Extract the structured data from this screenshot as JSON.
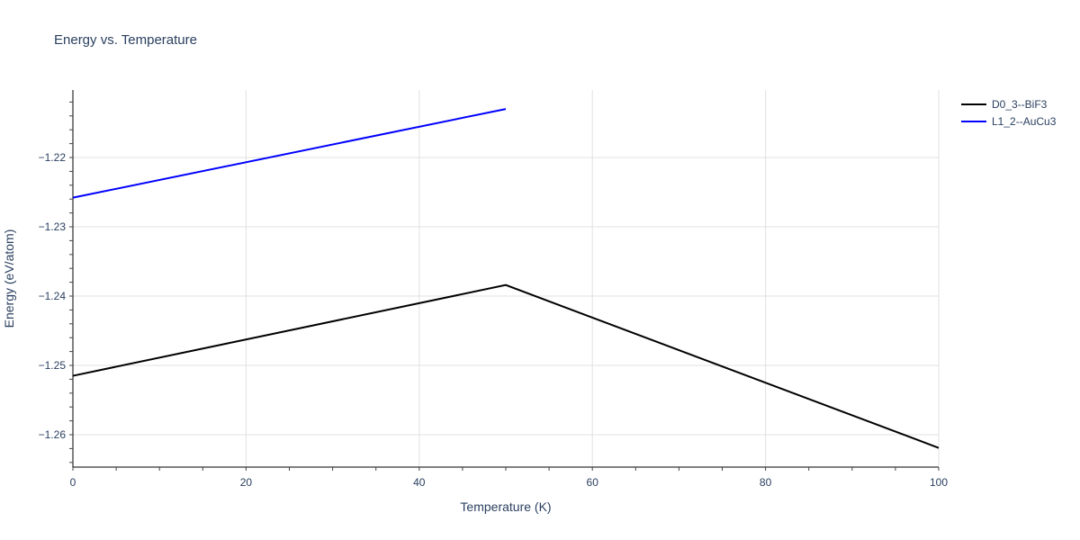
{
  "chart_data": {
    "type": "line",
    "title": "Energy vs. Temperature",
    "xlabel": "Temperature (K)",
    "ylabel": "Energy (eV/atom)",
    "xlim": [
      0,
      100
    ],
    "ylim": [
      -1.265,
      -1.2115
    ],
    "x_ticks": [
      0,
      20,
      40,
      60,
      80,
      100
    ],
    "y_ticks": [
      -1.26,
      -1.25,
      -1.24,
      -1.23,
      -1.22
    ],
    "y_tick_labels": [
      "−1.26",
      "−1.25",
      "−1.24",
      "−1.23",
      "−1.22"
    ],
    "grid": true,
    "legend_position": "top-right outside",
    "series": [
      {
        "name": "D0_3--BiF3",
        "color": "#000000",
        "x": [
          0,
          50,
          100
        ],
        "y": [
          -1.2515,
          -1.2384,
          -1.2619
        ]
      },
      {
        "name": "L1_2--AuCu3",
        "color": "#0000ff",
        "x": [
          0,
          50
        ],
        "y": [
          -1.2258,
          -1.213
        ]
      }
    ]
  }
}
